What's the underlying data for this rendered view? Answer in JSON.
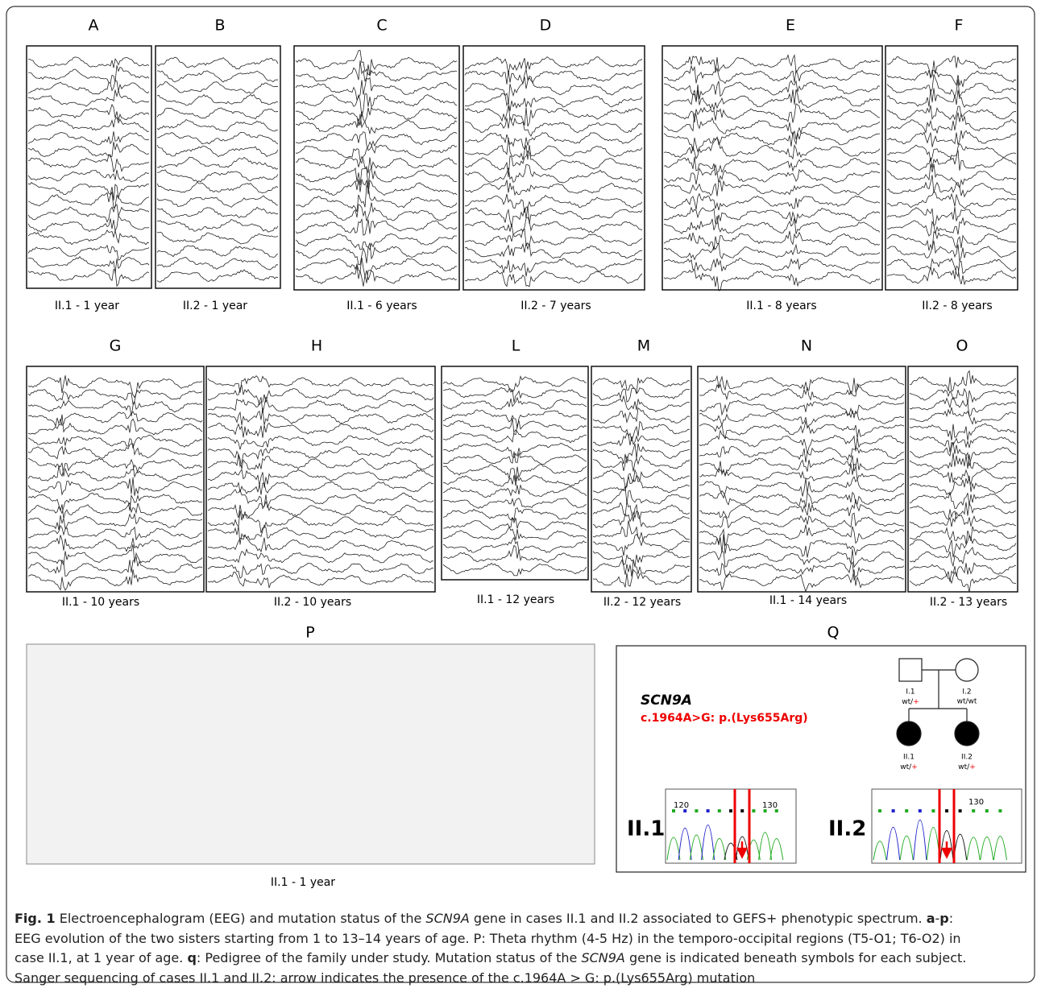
{
  "panels": [
    {
      "letter": "A",
      "caption": "II.1 - 1 year"
    },
    {
      "letter": "B",
      "caption": "II.2 - 1 year"
    },
    {
      "letter": "C",
      "caption": "II.1 - 6 years"
    },
    {
      "letter": "D",
      "caption": "II.2 - 7 years"
    },
    {
      "letter": "E",
      "caption": "II.1 -  8 years"
    },
    {
      "letter": "F",
      "caption": "II.2 - 8 years"
    },
    {
      "letter": "G",
      "caption": "II.1 - 10 years"
    },
    {
      "letter": "H",
      "caption": "II.2 - 10 years"
    },
    {
      "letter": "L",
      "caption": "II.1 - 12 years"
    },
    {
      "letter": "M",
      "caption": "II.2 - 12 years"
    },
    {
      "letter": "N",
      "caption": "II.1 - 14 years"
    },
    {
      "letter": "O",
      "caption": "II.2 - 13 years"
    }
  ],
  "panel_p": {
    "letter": "P",
    "caption": "II.1 - 1 year"
  },
  "panel_q": {
    "letter": "Q",
    "gene": "SCN9A",
    "mutation": "c.1964A>G: p.(Lys655Arg)",
    "pedigree": [
      {
        "id": "I.1",
        "status": "wt/",
        "mark": "+"
      },
      {
        "id": "I.2",
        "status": "wt/wt"
      },
      {
        "id": "II.1",
        "status": "wt/",
        "mark": "+"
      },
      {
        "id": "II.2",
        "status": "wt/",
        "mark": "+"
      }
    ],
    "sequencing": [
      {
        "case": "II.1",
        "positions": [
          "120",
          "130"
        ]
      },
      {
        "case": "II.2",
        "positions": [
          "130"
        ]
      }
    ]
  },
  "caption": {
    "lines": [
      [
        "Fig. 1",
        " Electroencephalogram (EEG) and mutation status of the ",
        "SCN9A",
        " gene in cases II.1 and II.2 associated to GEFS+ phenotypic spectrum. ",
        "a",
        "-",
        "p",
        ":"
      ],
      [
        "EEG evolution of the two sisters starting from 1 to 13–14 years of age. P: Theta rhythm (4-5 Hz) in the temporo-occipital regions (T5-O1; T6-O2) in"
      ],
      [
        "case II.1, at 1 year of age. ",
        "q",
        ": Pedigree of the family under study. Mutation status of the ",
        "SCN9A",
        " gene is indicated beneath symbols for each subject."
      ],
      [
        "Sanger sequencing of cases II.1 and II.2: arrow indicates the presence of the c.1964A > G: p.(Lys655Arg) mutation"
      ]
    ]
  }
}
